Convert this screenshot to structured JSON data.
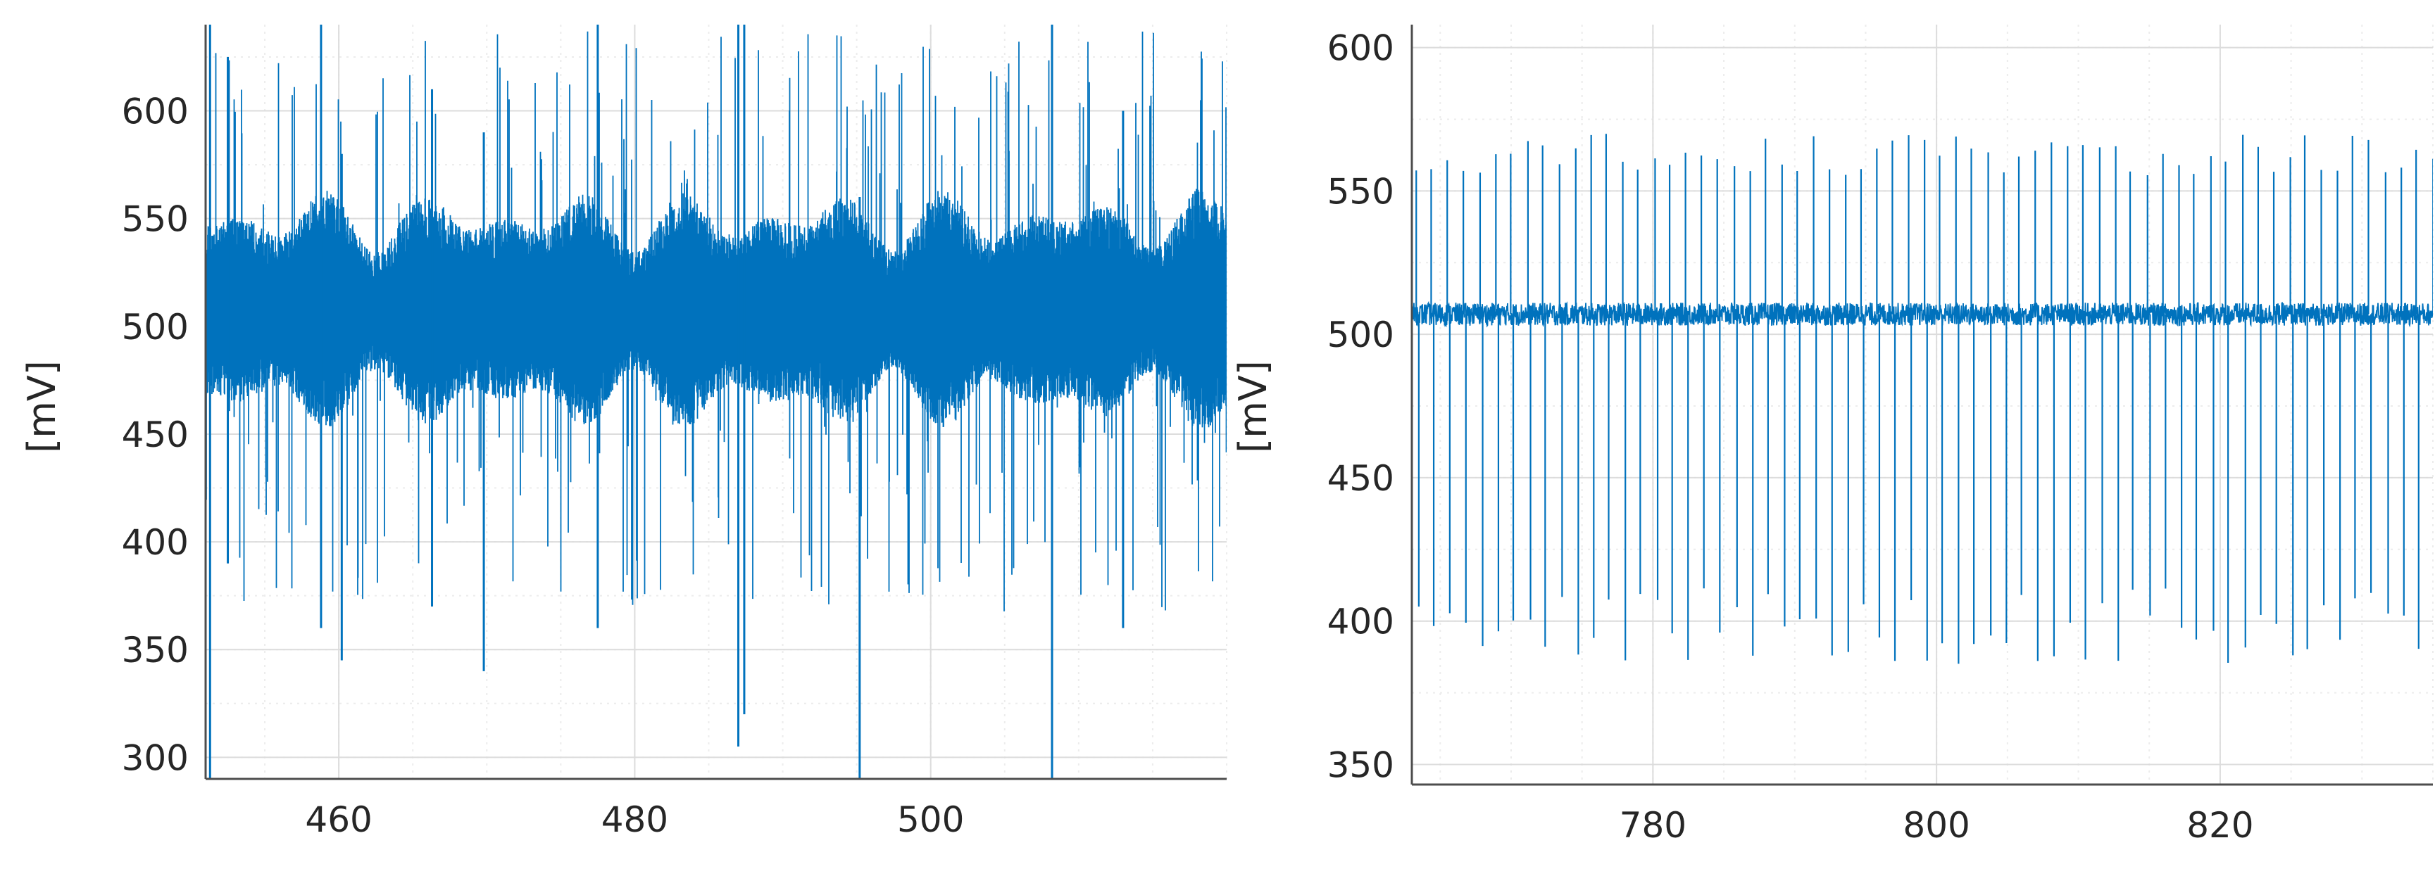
{
  "chart_data": [
    {
      "type": "line",
      "title": "",
      "xlabel": "",
      "ylabel": "[mV]",
      "xlim": [
        451,
        520
      ],
      "ylim": [
        290,
        640
      ],
      "xticks": [
        460,
        480,
        500
      ],
      "xtick_labels": [
        "460",
        "480",
        "500"
      ],
      "yticks": [
        300,
        350,
        400,
        450,
        500,
        550,
        600
      ],
      "ytick_labels": [
        "300",
        "350",
        "400",
        "450",
        "500",
        "550",
        "600"
      ],
      "grid": true,
      "minor_grid": true,
      "series": [
        {
          "color": "#0072bd",
          "baseline": 507,
          "noise_amplitude": [
            475,
            540
          ],
          "spike_peaks": [
            {
              "x": 451.3,
              "ymax": 640,
              "ymin": 290
            },
            {
              "x": 452.5,
              "ymax": 625,
              "ymin": 390
            },
            {
              "x": 458.8,
              "ymax": 640,
              "ymin": 360
            },
            {
              "x": 460.2,
              "ymax": 580,
              "ymin": 345
            },
            {
              "x": 466.3,
              "ymax": 610,
              "ymin": 370
            },
            {
              "x": 469.8,
              "ymax": 590,
              "ymin": 340
            },
            {
              "x": 477.5,
              "ymax": 640,
              "ymin": 360
            },
            {
              "x": 487.0,
              "ymax": 640,
              "ymin": 305
            },
            {
              "x": 487.4,
              "ymax": 640,
              "ymin": 320
            },
            {
              "x": 495.2,
              "ymax": 560,
              "ymin": 290
            },
            {
              "x": 508.2,
              "ymax": 640,
              "ymin": 290
            },
            {
              "x": 513.0,
              "ymax": 600,
              "ymin": 360
            }
          ]
        }
      ]
    },
    {
      "type": "line",
      "title": "",
      "xlabel": "",
      "ylabel": "[mV]",
      "xlim": [
        763,
        835
      ],
      "ylim": [
        343,
        608
      ],
      "xticks": [
        780,
        800,
        820
      ],
      "xtick_labels": [
        "780",
        "800",
        "820"
      ],
      "yticks": [
        350,
        400,
        450,
        500,
        550,
        600
      ],
      "ytick_labels": [
        "350",
        "400",
        "450",
        "500",
        "550",
        "600"
      ],
      "grid": true,
      "minor_grid": true,
      "series": [
        {
          "color": "#0072bd",
          "baseline": 507,
          "noise_amplitude": [
            503,
            511
          ],
          "spike_interval": 1.12,
          "spike_first_x": 763.3,
          "spike_max_range": [
            555,
            570
          ],
          "spike_min_range": [
            385,
            412
          ]
        }
      ]
    }
  ]
}
